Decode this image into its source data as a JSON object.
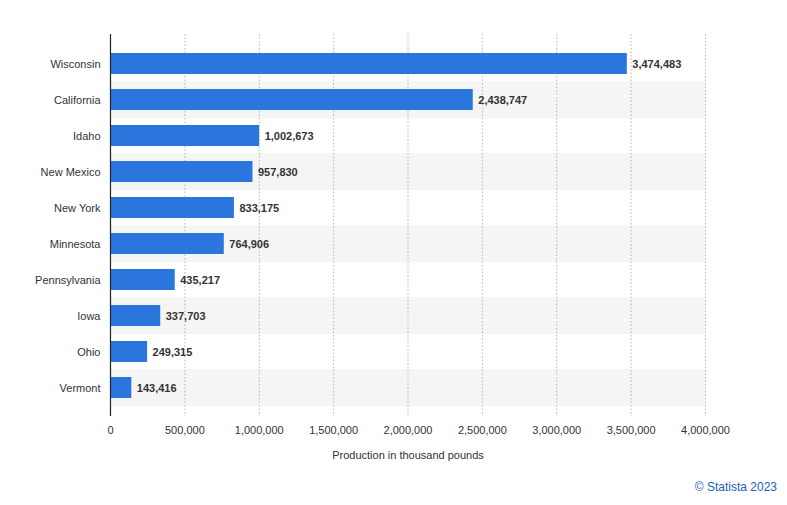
{
  "chart_data": {
    "type": "bar",
    "orientation": "horizontal",
    "categories": [
      "Wisconsin",
      "California",
      "Idaho",
      "New Mexico",
      "New York",
      "Minnesota",
      "Pennsylvania",
      "Iowa",
      "Ohio",
      "Vermont"
    ],
    "values": [
      3474483,
      2438747,
      1002673,
      957830,
      833175,
      764906,
      435217,
      337703,
      249315,
      143416
    ],
    "value_labels": [
      "3,474,483",
      "2,438,747",
      "1,002,673",
      "957,830",
      "833,175",
      "764,906",
      "435,217",
      "337,703",
      "249,315",
      "143,416"
    ],
    "color": "#2a76dd",
    "xlabel": "Production in thousand pounds",
    "xlim": [
      0,
      4000000
    ],
    "xticks": [
      0,
      {
        "value": 500000,
        "label": "500,000"
      },
      {
        "value": 1000000,
        "label": "1,000,000"
      },
      {
        "value": 1500000,
        "label": "1,500,000"
      },
      {
        "value": 2000000,
        "label": "2,000,000"
      },
      {
        "value": 2500000,
        "label": "2,500,000"
      },
      {
        "value": 3000000,
        "label": "3,000,000"
      },
      {
        "value": 3500000,
        "label": "3,500,000"
      },
      {
        "value": 4000000,
        "label": "4,000,000"
      }
    ],
    "grid": true,
    "data_labels": true,
    "source": "© Statista 2023"
  }
}
